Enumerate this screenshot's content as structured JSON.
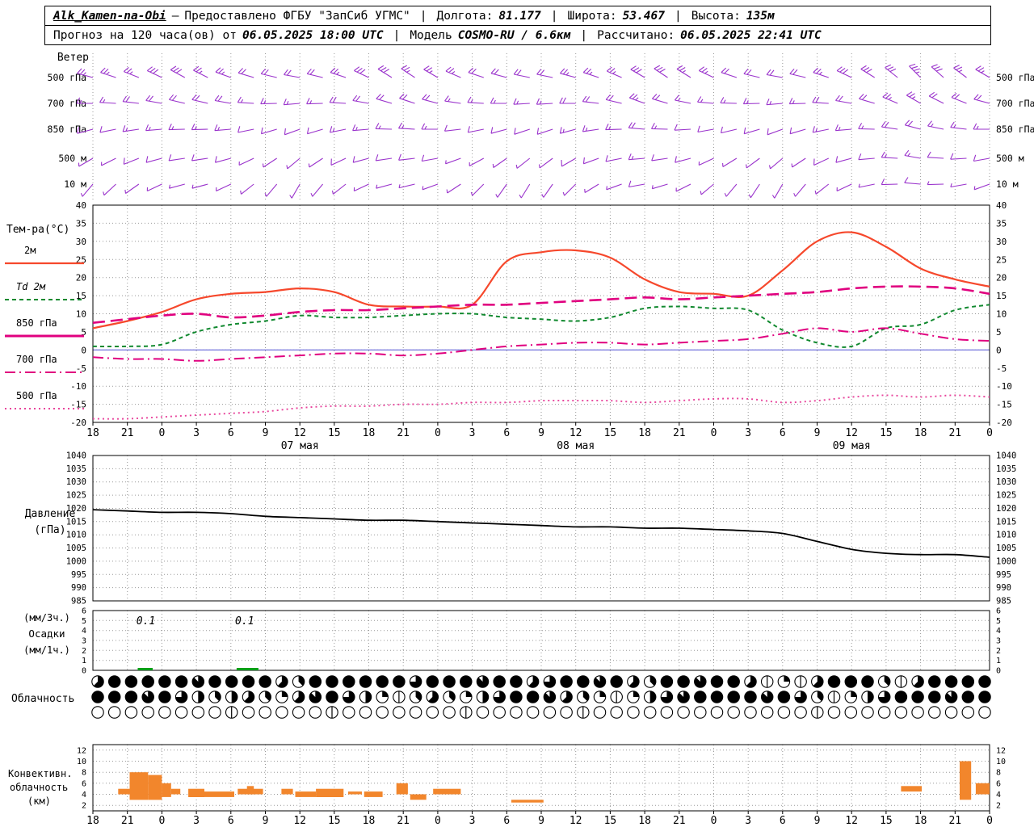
{
  "header": {
    "sep": "|",
    "line1": {
      "station": "Alk_Kamen-na-Obi",
      "dash": "—",
      "provider": "Предоставлено ФГБУ \"ЗапСиб УГМС\"",
      "lon_label": "Долгота:",
      "lon_value": "81.177",
      "lat_label": "Широта:",
      "lat_value": "53.467",
      "alt_label": "Высота:",
      "alt_value": "135м"
    },
    "line2": {
      "forecast_label": "Прогноз на 120 часа(ов) от",
      "forecast_time": "06.05.2025 18:00 UTC",
      "model_label": "Модель",
      "model_value": "COSMO-RU / 6.6км",
      "calc_label": "Рассчитано:",
      "calc_value": "06.05.2025 22:41 UTC"
    }
  },
  "chart_data": {
    "type": "meteogram",
    "x_axis": {
      "start_label_hour": 18,
      "step_h": 3,
      "total_h": 78,
      "labels": [
        "18",
        "21",
        "0",
        "3",
        "6",
        "9",
        "12",
        "15",
        "18",
        "21",
        "0",
        "3",
        "6",
        "9",
        "12",
        "15",
        "18",
        "21",
        "0",
        "3",
        "6",
        "9",
        "12",
        "15",
        "18",
        "21",
        "0"
      ],
      "date_labels": [
        {
          "label": "07 мая",
          "hour_offset": 18
        },
        {
          "label": "08 мая",
          "hour_offset": 42
        },
        {
          "label": "09 мая",
          "hour_offset": 66
        }
      ]
    },
    "wind": {
      "title": "Ветер",
      "color": "#9a33cc",
      "levels": [
        {
          "label": "500 гПа",
          "dirs": [
            285,
            290,
            295,
            300,
            290,
            285,
            280,
            285,
            295,
            305,
            300,
            290,
            285,
            280,
            285,
            290,
            300,
            305,
            295,
            285,
            280,
            285,
            295,
            305,
            315,
            310,
            300
          ],
          "speeds": [
            25,
            25,
            30,
            30,
            25,
            20,
            20,
            25,
            30,
            30,
            25,
            25,
            20,
            20,
            25,
            25,
            30,
            30,
            25,
            20,
            20,
            25,
            30,
            30,
            35,
            30,
            25
          ]
        },
        {
          "label": "700 гПа",
          "dirs": [
            270,
            275,
            280,
            285,
            280,
            270,
            265,
            270,
            280,
            290,
            285,
            275,
            270,
            265,
            270,
            280,
            290,
            285,
            275,
            270,
            265,
            270,
            280,
            290,
            300,
            295,
            285
          ],
          "speeds": [
            15,
            20,
            20,
            25,
            20,
            15,
            15,
            20,
            20,
            25,
            20,
            15,
            15,
            15,
            20,
            20,
            25,
            20,
            15,
            15,
            15,
            20,
            20,
            25,
            25,
            20,
            20
          ]
        },
        {
          "label": "850 гПа",
          "dirs": [
            255,
            260,
            265,
            270,
            265,
            255,
            250,
            255,
            265,
            275,
            270,
            260,
            255,
            250,
            255,
            265,
            275,
            270,
            260,
            255,
            250,
            255,
            265,
            275,
            285,
            280,
            270
          ],
          "speeds": [
            10,
            15,
            15,
            20,
            15,
            10,
            10,
            15,
            15,
            20,
            15,
            10,
            10,
            10,
            15,
            15,
            20,
            15,
            10,
            10,
            10,
            15,
            15,
            20,
            20,
            15,
            15
          ]
        },
        {
          "label": "500 м",
          "dirs": [
            240,
            245,
            255,
            265,
            255,
            240,
            230,
            240,
            255,
            265,
            260,
            245,
            235,
            230,
            240,
            255,
            265,
            260,
            245,
            235,
            230,
            240,
            255,
            270,
            280,
            270,
            260
          ],
          "speeds": [
            8,
            10,
            12,
            15,
            12,
            8,
            8,
            10,
            12,
            15,
            12,
            8,
            8,
            8,
            10,
            12,
            15,
            12,
            8,
            8,
            8,
            10,
            12,
            15,
            15,
            12,
            10
          ]
        },
        {
          "label": "10 м",
          "dirs": [
            220,
            230,
            245,
            260,
            245,
            225,
            210,
            225,
            245,
            260,
            250,
            230,
            215,
            210,
            225,
            245,
            260,
            250,
            230,
            215,
            210,
            225,
            245,
            265,
            275,
            265,
            250
          ],
          "speeds": [
            5,
            7,
            8,
            10,
            8,
            5,
            5,
            7,
            8,
            10,
            8,
            5,
            5,
            5,
            7,
            8,
            10,
            8,
            5,
            5,
            5,
            7,
            8,
            10,
            10,
            8,
            7
          ]
        }
      ]
    },
    "temperature": {
      "label": "Тем-ра(°C)",
      "ylim": [
        -20,
        40
      ],
      "ytick_step": 5,
      "zero_line_color": "#8080e0",
      "series": [
        {
          "name": "2м",
          "color": "#f6482c",
          "style": "solid",
          "values": [
            6,
            8,
            10.5,
            14,
            15.5,
            16,
            17,
            16,
            12.5,
            12,
            12,
            12.5,
            24.5,
            27,
            27.5,
            25.5,
            19.5,
            16,
            15.5,
            15,
            22,
            30,
            32.5,
            28.5,
            22.5,
            19.5,
            17.5
          ]
        },
        {
          "name": "Td 2м",
          "color": "#11892f",
          "style": "dashed",
          "values": [
            1,
            1,
            1.5,
            5,
            7,
            8,
            9.5,
            9,
            9,
            9.5,
            10,
            10,
            9,
            8.5,
            8,
            9,
            11.5,
            12,
            11.5,
            11,
            5.5,
            2,
            1,
            6,
            7,
            11,
            12.5
          ]
        },
        {
          "name": "850 гПа",
          "color": "#e0007f",
          "style": "longdash",
          "legend_style": "solid",
          "values": [
            7.5,
            8.5,
            9.5,
            10,
            9,
            9.5,
            10.5,
            11,
            11,
            11.5,
            12,
            12.5,
            12.5,
            13,
            13.5,
            14,
            14.5,
            14,
            14.5,
            15,
            15.5,
            16,
            17,
            17.5,
            17.5,
            17,
            15.5
          ]
        },
        {
          "name": "700 гПа",
          "color": "#e0007f",
          "style": "dashdot",
          "values": [
            -2,
            -2.5,
            -2.5,
            -3,
            -2.5,
            -2,
            -1.5,
            -1,
            -1,
            -1.5,
            -1,
            0,
            1,
            1.5,
            2,
            2,
            1.5,
            2,
            2.5,
            3,
            4.5,
            6,
            5,
            6,
            4.5,
            3,
            2.5
          ]
        },
        {
          "name": "500 гПа",
          "color": "#e8449c",
          "style": "dotted",
          "values": [
            -19,
            -19,
            -18.5,
            -18,
            -17.5,
            -17,
            -16,
            -15.5,
            -15.5,
            -15,
            -15,
            -14.5,
            -14.5,
            -14,
            -14,
            -14,
            -14.5,
            -14,
            -13.5,
            -13.5,
            -14.5,
            -14,
            -13,
            -12.5,
            -13,
            -12.5,
            -13
          ]
        }
      ]
    },
    "pressure": {
      "label_1": "Давление",
      "label_2": "(гПа)",
      "ylim": [
        985,
        1040
      ],
      "ytick_step": 5,
      "color": "#000000",
      "values": [
        1019.5,
        1019,
        1018.5,
        1018.5,
        1018,
        1017,
        1016.5,
        1016,
        1015.5,
        1015.5,
        1015,
        1014.5,
        1014,
        1013.5,
        1013,
        1013,
        1012.5,
        1012.5,
        1012,
        1011.5,
        1010.5,
        1007.5,
        1004.5,
        1003,
        1002.5,
        1002.5,
        1001.5
      ]
    },
    "precipitation": {
      "labels": [
        "(мм/3ч.)",
        "Осадки",
        "(мм/1ч.)"
      ],
      "ylim": [
        0,
        6
      ],
      "bar_color": "#00a018",
      "bars": [
        {
          "hour": 3.9,
          "width_h": 1.3,
          "value": 0.1
        },
        {
          "hour": 12.5,
          "width_h": 1.9,
          "value": 0.1
        }
      ],
      "annotations": [
        {
          "hour": 4.6,
          "text": "0.1"
        },
        {
          "hour": 13.2,
          "text": "0.1"
        }
      ]
    },
    "cloudiness": {
      "label": "Облачность",
      "rows": [
        [
          5,
          8,
          8,
          8,
          8,
          8,
          7,
          8,
          8,
          8,
          8,
          5,
          3,
          8,
          8,
          8,
          8,
          8,
          8,
          6,
          8,
          8,
          8,
          7,
          8,
          8,
          5,
          6,
          8,
          8,
          7,
          8,
          5,
          3,
          8,
          8,
          7,
          8,
          8,
          5,
          1,
          2,
          1,
          5,
          8,
          8,
          8,
          3,
          1,
          5,
          8,
          8,
          8,
          8
        ],
        [
          8,
          8,
          8,
          7,
          8,
          6,
          4,
          3,
          4,
          5,
          3,
          2,
          5,
          7,
          8,
          6,
          4,
          2,
          1,
          3,
          5,
          3,
          2,
          4,
          6,
          8,
          8,
          7,
          5,
          3,
          2,
          1,
          2,
          4,
          6,
          7,
          8,
          8,
          8,
          8,
          7,
          8,
          6,
          3,
          1,
          2,
          4,
          6,
          8,
          8,
          8,
          7,
          8,
          8
        ],
        [
          0,
          0,
          0,
          0,
          0,
          0,
          0,
          0,
          1,
          0,
          0,
          0,
          0,
          0,
          1,
          0,
          0,
          0,
          0,
          0,
          0,
          0,
          1,
          0,
          0,
          0,
          0,
          0,
          0,
          1,
          0,
          0,
          0,
          0,
          0,
          0,
          0,
          0,
          0,
          0,
          0,
          0,
          0,
          1,
          0,
          0,
          0,
          0,
          0,
          0,
          0,
          0,
          0,
          0
        ]
      ]
    },
    "convective": {
      "labels": [
        "Конвективн.",
        "облачность",
        "(км)"
      ],
      "ylim": [
        1,
        13
      ],
      "yticks": [
        2,
        4,
        6,
        8,
        10,
        12
      ],
      "color": "#f2862c",
      "bars": [
        {
          "h": 2.2,
          "w": 1.2,
          "b": 4,
          "t": 5
        },
        {
          "h": 3.2,
          "w": 1.6,
          "b": 3,
          "t": 8
        },
        {
          "h": 4.8,
          "w": 1.2,
          "b": 3,
          "t": 7.5
        },
        {
          "h": 6.0,
          "w": 0.8,
          "b": 3.5,
          "t": 6
        },
        {
          "h": 6.8,
          "w": 0.8,
          "b": 4,
          "t": 5
        },
        {
          "h": 8.3,
          "w": 1.4,
          "b": 3.5,
          "t": 5
        },
        {
          "h": 9.7,
          "w": 2.6,
          "b": 3.5,
          "t": 4.5
        },
        {
          "h": 12.6,
          "w": 2.2,
          "b": 4,
          "t": 5
        },
        {
          "h": 13.4,
          "w": 0.6,
          "b": 4,
          "t": 5.5
        },
        {
          "h": 16.4,
          "w": 1.0,
          "b": 4,
          "t": 5
        },
        {
          "h": 17.6,
          "w": 1.8,
          "b": 3.5,
          "t": 4.5
        },
        {
          "h": 19.4,
          "w": 2.4,
          "b": 3.5,
          "t": 5
        },
        {
          "h": 22.2,
          "w": 1.2,
          "b": 4,
          "t": 4.5
        },
        {
          "h": 23.6,
          "w": 1.6,
          "b": 3.5,
          "t": 4.5
        },
        {
          "h": 26.4,
          "w": 1.0,
          "b": 4,
          "t": 6
        },
        {
          "h": 27.6,
          "w": 1.4,
          "b": 3,
          "t": 4
        },
        {
          "h": 29.6,
          "w": 2.4,
          "b": 4,
          "t": 5
        },
        {
          "h": 36.4,
          "w": 2.8,
          "b": 2.5,
          "t": 3
        },
        {
          "h": 70.3,
          "w": 1.8,
          "b": 4.5,
          "t": 5.5
        },
        {
          "h": 75.4,
          "w": 1.0,
          "b": 3,
          "t": 10
        },
        {
          "h": 76.8,
          "w": 1.2,
          "b": 4,
          "t": 6
        }
      ]
    }
  }
}
